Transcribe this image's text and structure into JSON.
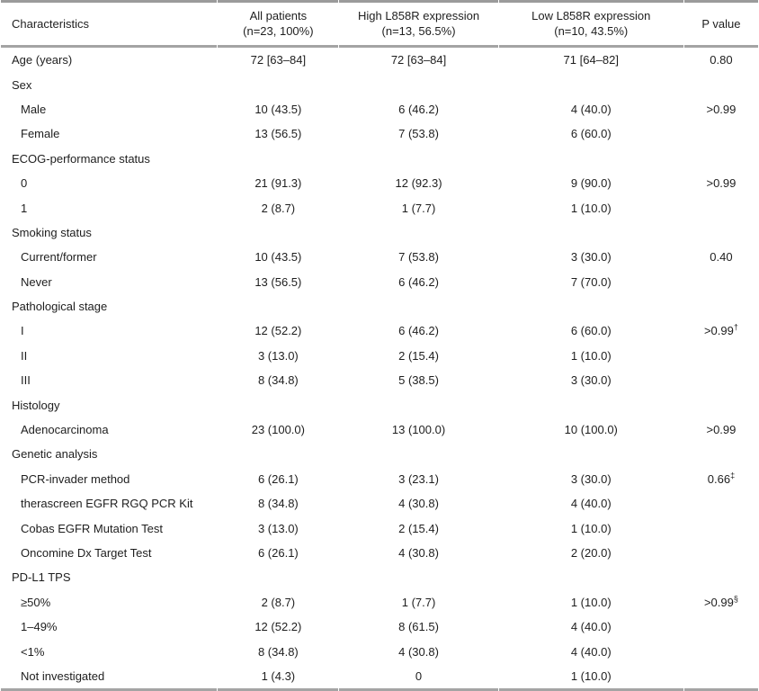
{
  "table": {
    "columns": [
      {
        "label": "Characteristics",
        "sublabel": ""
      },
      {
        "label": "All patients",
        "sublabel": "(n=23, 100%)"
      },
      {
        "label": "High L858R expression",
        "sublabel": "(n=13, 56.5%)"
      },
      {
        "label": "Low L858R expression",
        "sublabel": "(n=10, 43.5%)"
      },
      {
        "label": "P value",
        "sublabel": ""
      }
    ],
    "rows": [
      {
        "label": "Age (years)",
        "indent": false,
        "all": "72 [63–84]",
        "high": "72 [63–84]",
        "low": "71 [64–82]",
        "p": "0.80",
        "p_sup": ""
      },
      {
        "label": "Sex",
        "indent": false,
        "all": "",
        "high": "",
        "low": "",
        "p": "",
        "p_sup": ""
      },
      {
        "label": "Male",
        "indent": true,
        "all": "10 (43.5)",
        "high": "6 (46.2)",
        "low": "4 (40.0)",
        "p": ">0.99",
        "p_sup": ""
      },
      {
        "label": "Female",
        "indent": true,
        "all": "13 (56.5)",
        "high": "7 (53.8)",
        "low": "6 (60.0)",
        "p": "",
        "p_sup": ""
      },
      {
        "label": "ECOG-performance status",
        "indent": false,
        "all": "",
        "high": "",
        "low": "",
        "p": "",
        "p_sup": ""
      },
      {
        "label": "0",
        "indent": true,
        "all": "21 (91.3)",
        "high": "12 (92.3)",
        "low": "9 (90.0)",
        "p": ">0.99",
        "p_sup": ""
      },
      {
        "label": "1",
        "indent": true,
        "all": "2 (8.7)",
        "high": "1 (7.7)",
        "low": "1 (10.0)",
        "p": "",
        "p_sup": ""
      },
      {
        "label": "Smoking status",
        "indent": false,
        "all": "",
        "high": "",
        "low": "",
        "p": "",
        "p_sup": ""
      },
      {
        "label": "Current/former",
        "indent": true,
        "all": "10 (43.5)",
        "high": "7 (53.8)",
        "low": "3 (30.0)",
        "p": "0.40",
        "p_sup": ""
      },
      {
        "label": "Never",
        "indent": true,
        "all": "13 (56.5)",
        "high": "6 (46.2)",
        "low": "7 (70.0)",
        "p": "",
        "p_sup": ""
      },
      {
        "label": "Pathological stage",
        "indent": false,
        "all": "",
        "high": "",
        "low": "",
        "p": "",
        "p_sup": ""
      },
      {
        "label": "I",
        "indent": true,
        "all": "12 (52.2)",
        "high": "6 (46.2)",
        "low": "6 (60.0)",
        "p": ">0.99",
        "p_sup": "†"
      },
      {
        "label": "II",
        "indent": true,
        "all": "3 (13.0)",
        "high": "2 (15.4)",
        "low": "1 (10.0)",
        "p": "",
        "p_sup": ""
      },
      {
        "label": "III",
        "indent": true,
        "all": "8 (34.8)",
        "high": "5 (38.5)",
        "low": "3 (30.0)",
        "p": "",
        "p_sup": ""
      },
      {
        "label": "Histology",
        "indent": false,
        "all": "",
        "high": "",
        "low": "",
        "p": "",
        "p_sup": ""
      },
      {
        "label": "Adenocarcinoma",
        "indent": true,
        "all": "23 (100.0)",
        "high": "13 (100.0)",
        "low": "10 (100.0)",
        "p": ">0.99",
        "p_sup": ""
      },
      {
        "label": "Genetic analysis",
        "indent": false,
        "all": "",
        "high": "",
        "low": "",
        "p": "",
        "p_sup": ""
      },
      {
        "label": "PCR-invader method",
        "indent": true,
        "all": "6 (26.1)",
        "high": "3 (23.1)",
        "low": "3 (30.0)",
        "p": "0.66",
        "p_sup": "‡"
      },
      {
        "label": "therascreen EGFR RGQ PCR Kit",
        "indent": true,
        "all": "8 (34.8)",
        "high": "4 (30.8)",
        "low": "4 (40.0)",
        "p": "",
        "p_sup": ""
      },
      {
        "label": "Cobas EGFR Mutation Test",
        "indent": true,
        "all": "3 (13.0)",
        "high": "2 (15.4)",
        "low": "1 (10.0)",
        "p": "",
        "p_sup": ""
      },
      {
        "label": "Oncomine Dx Target Test",
        "indent": true,
        "all": "6 (26.1)",
        "high": "4 (30.8)",
        "low": "2 (20.0)",
        "p": "",
        "p_sup": ""
      },
      {
        "label": "PD-L1 TPS",
        "indent": false,
        "all": "",
        "high": "",
        "low": "",
        "p": "",
        "p_sup": ""
      },
      {
        "label": "≥50%",
        "indent": true,
        "all": "2 (8.7)",
        "high": "1 (7.7)",
        "low": "1 (10.0)",
        "p": ">0.99",
        "p_sup": "§"
      },
      {
        "label": "1–49%",
        "indent": true,
        "all": "12 (52.2)",
        "high": "8 (61.5)",
        "low": "4 (40.0)",
        "p": "",
        "p_sup": ""
      },
      {
        "label": "<1%",
        "indent": true,
        "all": "8 (34.8)",
        "high": "4 (30.8)",
        "low": "4 (40.0)",
        "p": "",
        "p_sup": ""
      },
      {
        "label": "Not investigated",
        "indent": true,
        "all": "1 (4.3)",
        "high": "0",
        "low": "1 (10.0)",
        "p": "",
        "p_sup": ""
      }
    ]
  }
}
